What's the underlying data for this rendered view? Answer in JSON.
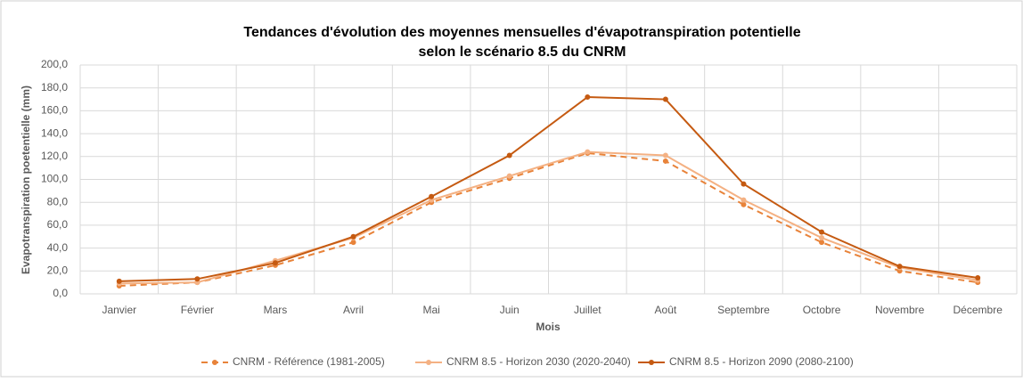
{
  "chart_data": {
    "type": "line",
    "title": [
      "Tendances d'évolution des moyennes mensuelles d'évapotranspiration potentielle",
      "selon le scénario 8.5 du CNRM"
    ],
    "x_label": "Mois",
    "y_label": "Evapotranspiration poetentielle (mm)",
    "categories": [
      "Janvier",
      "Février",
      "Mars",
      "Avril",
      "Mai",
      "Juin",
      "Juillet",
      "Août",
      "Septembre",
      "Octobre",
      "Novembre",
      "Décembre"
    ],
    "series": [
      {
        "name": "CNRM - Référence (1981-2005)",
        "color": "#e8833a",
        "style": "dashed",
        "values": [
          7,
          10,
          25,
          45,
          80,
          101,
          123,
          116,
          78,
          45,
          20,
          10
        ]
      },
      {
        "name": "CNRM 8.5 - Horizon 2030 (2020-2040)",
        "color": "#f4b183",
        "style": "solid",
        "values": [
          9,
          10,
          29,
          49,
          82,
          103,
          124,
          121,
          82,
          49,
          23,
          12
        ]
      },
      {
        "name": "CNRM 8.5 - Horizon 2090 (2080-2100)",
        "color": "#c55a11",
        "style": "solid",
        "values": [
          11,
          13,
          27,
          50,
          85,
          121,
          172,
          170,
          96,
          54,
          24,
          14
        ]
      }
    ],
    "ylim": [
      0,
      200
    ],
    "yticks": [
      {
        "value": 0,
        "label": "0,0"
      },
      {
        "value": 20,
        "label": "20,0"
      },
      {
        "value": 40,
        "label": "40,0"
      },
      {
        "value": 60,
        "label": "60,0"
      },
      {
        "value": 80,
        "label": "80,0"
      },
      {
        "value": 100,
        "label": "100,0"
      },
      {
        "value": 120,
        "label": "120,0"
      },
      {
        "value": 140,
        "label": "140,0"
      },
      {
        "value": 160,
        "label": "160,0"
      },
      {
        "value": 180,
        "label": "180,0"
      },
      {
        "value": 200,
        "label": "200,0"
      }
    ],
    "grid": true,
    "legend": "bottom"
  }
}
